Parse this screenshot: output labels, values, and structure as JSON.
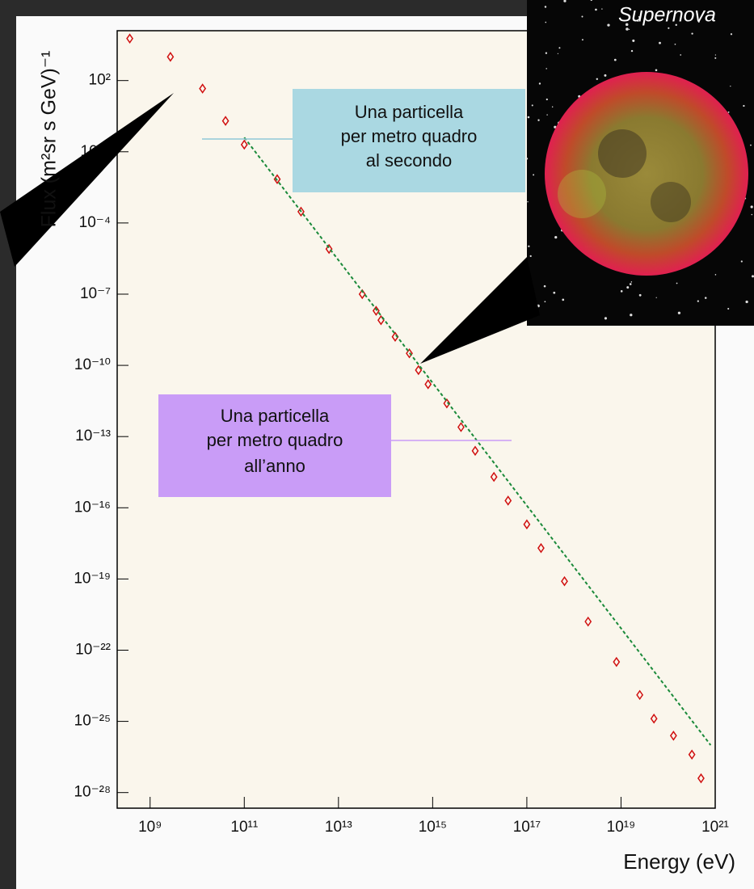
{
  "chart_data": {
    "type": "scatter",
    "xscale": "log",
    "yscale": "log",
    "x_label": "Energy (eV)",
    "y_label": "Flux (m²sr s GeV)⁻¹",
    "xlim": [
      200000000.0,
      1e+21
    ],
    "ylim": [
      2.2e-29,
      12600
    ],
    "xticks": [
      {
        "value": 1000000000.0,
        "label": "10⁹"
      },
      {
        "value": 100000000000.0,
        "label": "10¹¹"
      },
      {
        "value": 10000000000000.0,
        "label": "10¹³"
      },
      {
        "value": 1000000000000000.0,
        "label": "10¹⁵"
      },
      {
        "value": 1e+17,
        "label": "10¹⁷"
      },
      {
        "value": 1e+19,
        "label": "10¹⁹"
      },
      {
        "value": 1e+21,
        "label": "10²¹"
      }
    ],
    "yticks": [
      {
        "value": 100,
        "label": "10²"
      },
      {
        "value": 0.1,
        "label": "10⁻¹"
      },
      {
        "value": 0.0001,
        "label": "10⁻⁴"
      },
      {
        "value": 1e-07,
        "label": "10⁻⁷"
      },
      {
        "value": 1e-10,
        "label": "10⁻¹⁰"
      },
      {
        "value": 1e-13,
        "label": "10⁻¹³"
      },
      {
        "value": 1e-16,
        "label": "10⁻¹⁶"
      },
      {
        "value": 1e-19,
        "label": "10⁻¹⁹"
      },
      {
        "value": 1e-22,
        "label": "10⁻²²"
      },
      {
        "value": 1e-25,
        "label": "10⁻²⁵"
      },
      {
        "value": 1e-28,
        "label": "10⁻²⁸"
      }
    ],
    "series": [
      {
        "type": "scatter",
        "color": "#d01010",
        "marker": "diamond",
        "x": [
          370000000.0,
          2700000000.0,
          13000000000.0,
          40000000000.0,
          100000000000.0,
          500000000000.0,
          1600000000000.0,
          6300000000000.0,
          32000000000000.0,
          63000000000000.0,
          80000000000000.0,
          160000000000000.0,
          320000000000000.0,
          500000000000000.0,
          800000000000000.0,
          2000000000000000.0,
          4000000000000000.0,
          8000000000000000.0,
          2e+16,
          4e+16,
          1e+17,
          2e+17,
          6.3e+17,
          2e+18,
          8e+18,
          2.5e+19,
          5e+19,
          1.3e+20,
          3.2e+20,
          5e+20
        ],
        "values": [
          5900,
          1000,
          46,
          2,
          0.2,
          0.007,
          0.0003,
          8e-06,
          1e-07,
          2e-08,
          8e-09,
          1.6e-09,
          3.2e-10,
          6.3e-11,
          1.6e-11,
          2.5e-12,
          2.5e-13,
          2.5e-14,
          2e-15,
          2e-16,
          2e-17,
          2e-18,
          8e-20,
          1.6e-21,
          3.2e-23,
          1.3e-24,
          1.3e-25,
          2.5e-26,
          4e-27,
          4e-28
        ]
      },
      {
        "type": "line",
        "color": "#1a8a3a",
        "line_style": "dashed",
        "x": [
          100000000000.0,
          8e+20
        ],
        "values": [
          0.4,
          1e-26
        ]
      }
    ],
    "annotations": [
      {
        "lines": [
          "Una particella",
          "per metro quadro",
          "al secondo"
        ],
        "color": "#aad8e2"
      },
      {
        "lines": [
          "Una particella",
          "per metro quadro",
          "all’anno"
        ],
        "color": "#c99cf7"
      }
    ],
    "image_caption": "Supernova"
  }
}
